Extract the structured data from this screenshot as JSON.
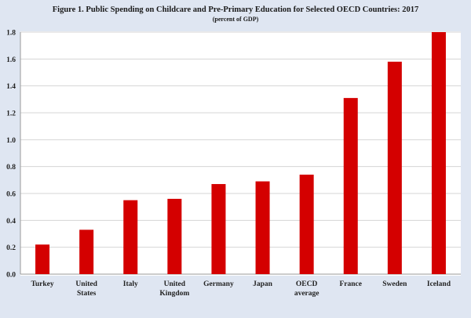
{
  "chart_data": {
    "type": "bar",
    "title": "Figure 1. Public Spending on Childcare and Pre-Primary Education for Selected OECD Countries: 2017",
    "subtitle": "(percent of GDP)",
    "categories": [
      [
        "Turkey"
      ],
      [
        "United",
        "States"
      ],
      [
        "Italy"
      ],
      [
        "United",
        "Kingdom"
      ],
      [
        "Germany"
      ],
      [
        "Japan"
      ],
      [
        "OECD",
        "average"
      ],
      [
        "France"
      ],
      [
        "Sweden"
      ],
      [
        "Iceland"
      ]
    ],
    "values": [
      0.22,
      0.33,
      0.55,
      0.56,
      0.67,
      0.69,
      0.74,
      1.31,
      1.58,
      1.8
    ],
    "ylim": [
      0,
      1.8
    ],
    "yticks": [
      "0.0",
      "0.2",
      "0.4",
      "0.6",
      "0.8",
      "1.0",
      "1.2",
      "1.4",
      "1.6",
      "1.8"
    ],
    "grid": true,
    "bar_color": "#d40000",
    "background_color": "#dfe6f2",
    "plot_background": "#ffffff"
  }
}
